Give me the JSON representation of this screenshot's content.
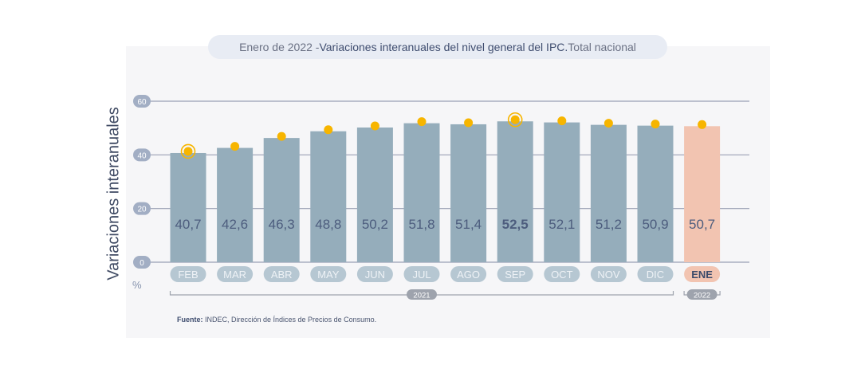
{
  "header": {
    "title_prefix": "Enero de 2022 - ",
    "title_main": "Variaciones interanuales del nivel general del IPC.",
    "title_suffix": " Total nacional"
  },
  "axis": {
    "ylabel": "Variaciones interanuales",
    "unit": "%"
  },
  "source": {
    "label": "Fuente:",
    "text": " INDEC, Dirección de Índices de Precios de Consumo."
  },
  "chart_data": {
    "type": "bar",
    "title": "Variaciones interanuales del nivel general del IPC",
    "categories": [
      "FEB",
      "MAR",
      "ABR",
      "MAY",
      "JUN",
      "JUL",
      "AGO",
      "SEP",
      "OCT",
      "NOV",
      "DIC",
      "ENE"
    ],
    "values": [
      40.7,
      42.6,
      46.3,
      48.8,
      50.2,
      51.8,
      51.4,
      52.5,
      52.1,
      51.2,
      50.9,
      50.7
    ],
    "value_labels": [
      "40,7",
      "42,6",
      "46,3",
      "48,8",
      "50,2",
      "51,8",
      "51,4",
      "52,5",
      "52,1",
      "51,2",
      "50,9",
      "50,7"
    ],
    "ylabel": "Variaciones interanuales",
    "ylim": [
      0,
      60
    ],
    "yticks": [
      0,
      20,
      40,
      60
    ],
    "grid": true,
    "highlight_value_index": 7,
    "ringed_marker_indices": [
      0,
      7
    ],
    "year_groups": [
      {
        "label": "2021",
        "from": 0,
        "to": 10
      },
      {
        "label": "2022",
        "from": 11,
        "to": 11
      }
    ],
    "colors": {
      "bar": "#95adbb",
      "bar_highlight": "#f2c4b1",
      "marker": "#f7b500",
      "grid": "#9aa0b4",
      "tick_pill": "#a2aec4",
      "category_pill": "#b6c7d2",
      "category_text": "#eef2f6",
      "category_highlight_pill": "#f2c4b1",
      "category_highlight_text": "#3b4a6a",
      "value_text": "#4d5d7e",
      "year_pill": "#9ea3ad"
    },
    "highlight_category_index": 11
  }
}
